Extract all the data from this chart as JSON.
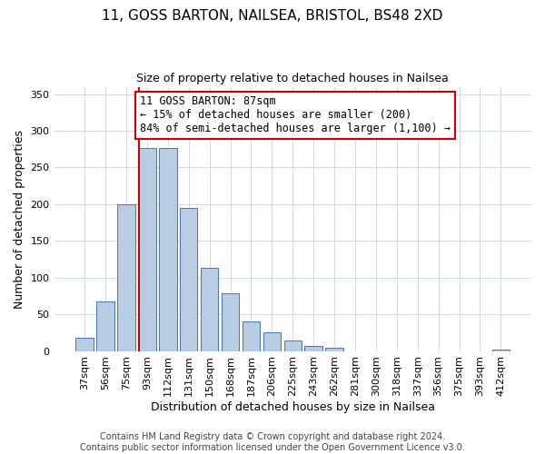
{
  "title": "11, GOSS BARTON, NAILSEA, BRISTOL, BS48 2XD",
  "subtitle": "Size of property relative to detached houses in Nailsea",
  "xlabel": "Distribution of detached houses by size in Nailsea",
  "ylabel": "Number of detached properties",
  "categories": [
    "37sqm",
    "56sqm",
    "75sqm",
    "93sqm",
    "112sqm",
    "131sqm",
    "150sqm",
    "168sqm",
    "187sqm",
    "206sqm",
    "225sqm",
    "243sqm",
    "262sqm",
    "281sqm",
    "300sqm",
    "318sqm",
    "337sqm",
    "356sqm",
    "375sqm",
    "393sqm",
    "412sqm"
  ],
  "values": [
    18,
    68,
    200,
    277,
    277,
    195,
    113,
    79,
    40,
    25,
    14,
    7,
    5,
    0,
    0,
    0,
    0,
    0,
    0,
    0,
    2
  ],
  "bar_color": "#b8cce4",
  "bar_edge_color": "#4472c4",
  "background_color": "#ffffff",
  "grid_color": "#d0d8e8",
  "vline_color": "#cc0000",
  "vline_x": 2.6,
  "annotation_text": "11 GOSS BARTON: 87sqm\n← 15% of detached houses are smaller (200)\n84% of semi-detached houses are larger (1,100) →",
  "annotation_box_color": "#ffffff",
  "annotation_box_edge_color": "#cc0000",
  "ylim": [
    0,
    360
  ],
  "yticks": [
    0,
    50,
    100,
    150,
    200,
    250,
    300,
    350
  ],
  "footer_line1": "Contains HM Land Registry data © Crown copyright and database right 2024.",
  "footer_line2": "Contains public sector information licensed under the Open Government Licence v3.0.",
  "title_fontsize": 11,
  "subtitle_fontsize": 9,
  "xlabel_fontsize": 9,
  "ylabel_fontsize": 9,
  "tick_fontsize": 8,
  "annotation_fontsize": 8.5,
  "footer_fontsize": 7
}
